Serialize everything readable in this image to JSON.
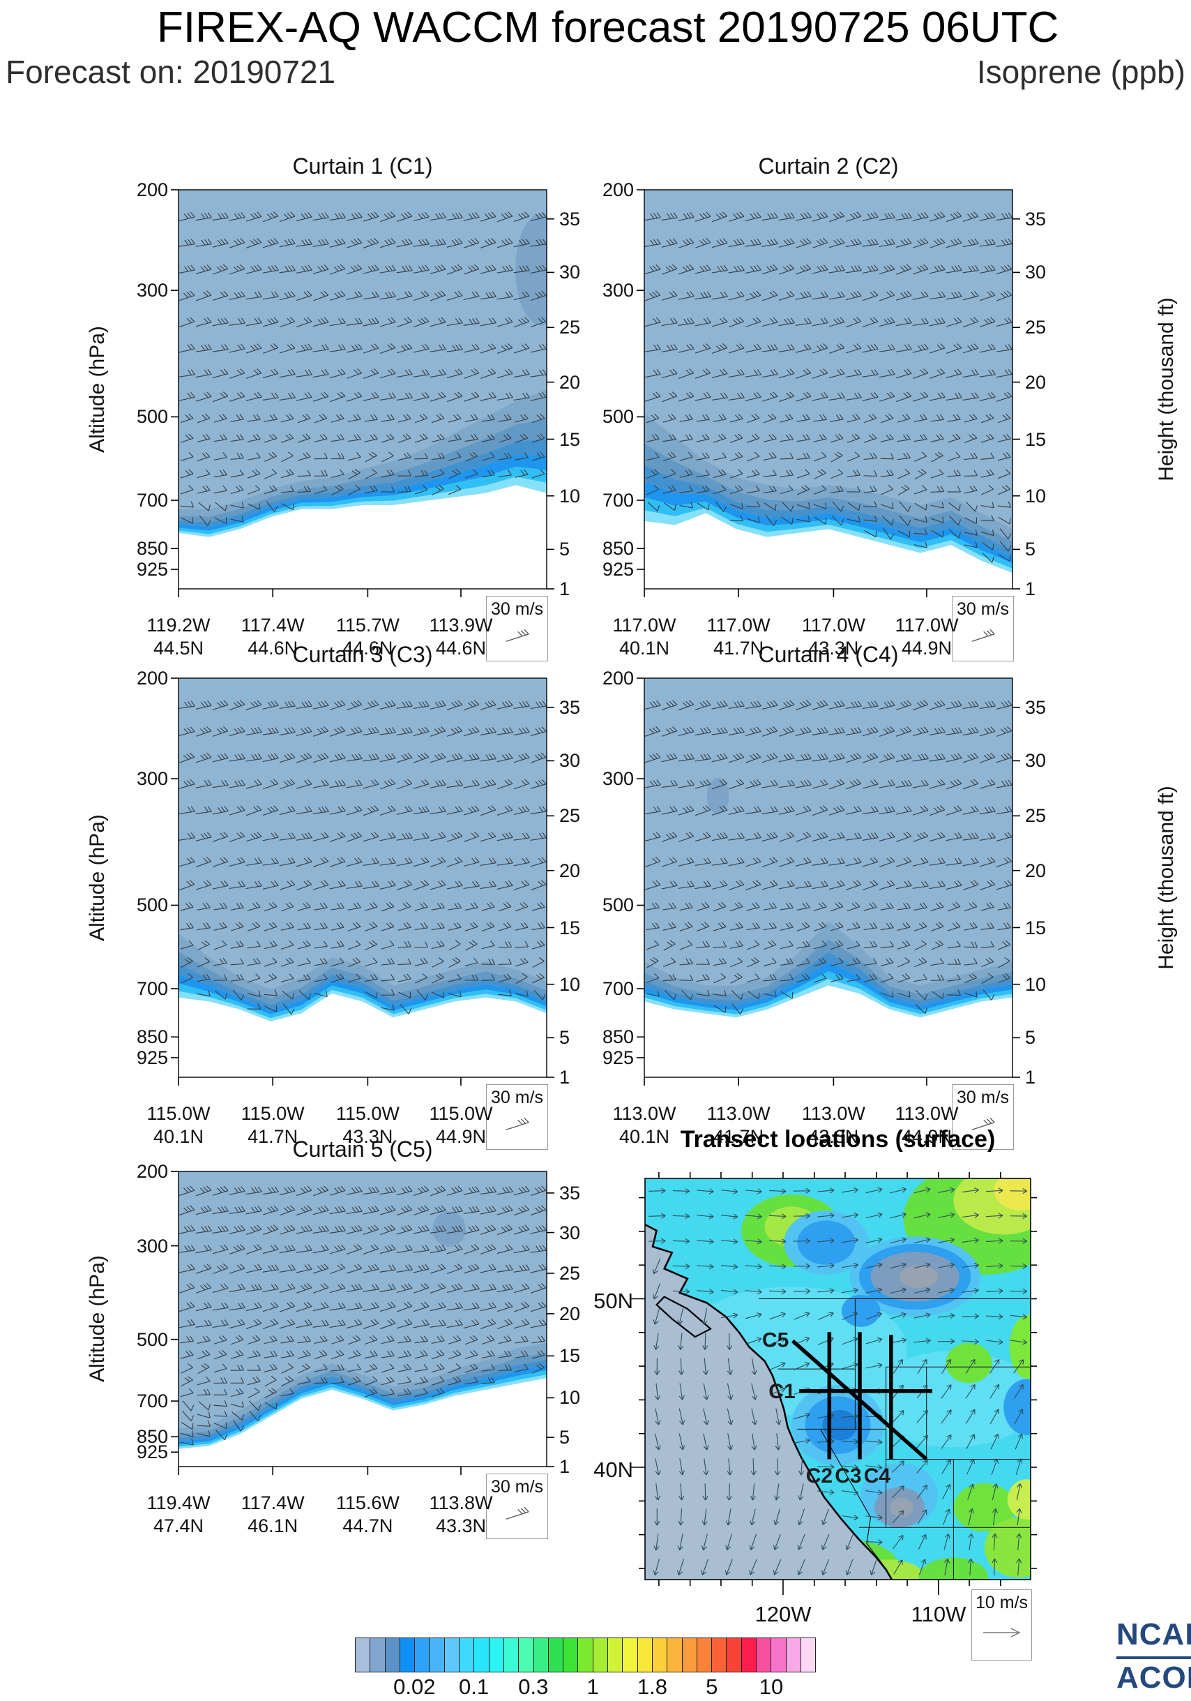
{
  "header": {
    "title": "FIREX-AQ WACCM forecast 20190725 06UTC",
    "forecast_on": "Forecast on: 20190721",
    "species": "Isoprene (ppb)"
  },
  "chart_data": {
    "type": "heatmap",
    "title": "FIREX-AQ WACCM forecast 20190725 06UTC",
    "units": "ppb",
    "species": "Isoprene",
    "axes": {
      "left_label": "Altitude (hPa)",
      "right_label": "Height (thousand ft)",
      "pressure_ticks": [
        "200",
        "300",
        "500",
        "700",
        "850",
        "925"
      ],
      "height_ticks": [
        "35",
        "30",
        "25",
        "20",
        "15",
        "10",
        "5",
        "1"
      ],
      "wind_legend": "30 m/s"
    },
    "panels": [
      {
        "id": "C1",
        "title": "Curtain 1 (C1)",
        "x_ticks": [
          [
            "119.2W",
            "44.5N"
          ],
          [
            "117.4W",
            "44.6N"
          ],
          [
            "115.7W",
            "44.6N"
          ],
          [
            "113.9W",
            "44.6N"
          ]
        ],
        "surf": [
          0.86,
          0.87,
          0.85,
          0.82,
          0.8,
          0.8,
          0.79,
          0.79,
          0.78,
          0.77,
          0.76,
          0.74,
          0.76
        ],
        "base": [
          0.8,
          0.8,
          0.78,
          0.75,
          0.73,
          0.72,
          0.7,
          0.68,
          0.65,
          0.61,
          0.57,
          0.53,
          0.5
        ],
        "blobs": [
          [
            0.985,
            0.2,
            0.07,
            0.14
          ]
        ]
      },
      {
        "id": "C2",
        "title": "Curtain 2 (C2)",
        "x_ticks": [
          [
            "117.0W",
            "40.1N"
          ],
          [
            "117.0W",
            "41.7N"
          ],
          [
            "117.0W",
            "43.3N"
          ],
          [
            "117.0W",
            "44.9N"
          ]
        ],
        "surf": [
          0.83,
          0.84,
          0.81,
          0.85,
          0.87,
          0.86,
          0.85,
          0.87,
          0.89,
          0.91,
          0.89,
          0.93,
          0.96
        ],
        "base": [
          0.56,
          0.62,
          0.68,
          0.72,
          0.74,
          0.75,
          0.74,
          0.75,
          0.77,
          0.79,
          0.77,
          0.81,
          0.85
        ],
        "blobs": []
      },
      {
        "id": "C3",
        "title": "Curtain 3 (C3)",
        "x_ticks": [
          [
            "115.0W",
            "40.1N"
          ],
          [
            "115.0W",
            "41.7N"
          ],
          [
            "115.0W",
            "43.3N"
          ],
          [
            "115.0W",
            "44.9N"
          ]
        ],
        "surf": [
          0.8,
          0.81,
          0.83,
          0.86,
          0.84,
          0.79,
          0.81,
          0.85,
          0.83,
          0.81,
          0.8,
          0.81,
          0.84
        ],
        "base": [
          0.64,
          0.7,
          0.75,
          0.78,
          0.75,
          0.7,
          0.72,
          0.77,
          0.75,
          0.73,
          0.71,
          0.73,
          0.76
        ],
        "blobs": []
      },
      {
        "id": "C4",
        "title": "Curtain 4 (C4)",
        "x_ticks": [
          [
            "113.0W",
            "40.1N"
          ],
          [
            "113.0W",
            "41.7N"
          ],
          [
            "113.0W",
            "43.3N"
          ],
          [
            "113.0W",
            "44.9N"
          ]
        ],
        "surf": [
          0.81,
          0.83,
          0.84,
          0.85,
          0.83,
          0.8,
          0.77,
          0.79,
          0.83,
          0.85,
          0.83,
          0.81,
          0.8
        ],
        "base": [
          0.71,
          0.75,
          0.77,
          0.77,
          0.75,
          0.69,
          0.61,
          0.67,
          0.75,
          0.77,
          0.75,
          0.73,
          0.71
        ],
        "blobs": [
          [
            0.2,
            0.295,
            0.03,
            0.045
          ]
        ]
      },
      {
        "id": "C5",
        "title": "Curtain 5 (C5)",
        "x_ticks": [
          [
            "119.4W",
            "47.4N"
          ],
          [
            "117.4W",
            "46.1N"
          ],
          [
            "115.6W",
            "44.7N"
          ],
          [
            "113.8W",
            "43.3N"
          ]
        ],
        "surf": [
          0.94,
          0.93,
          0.89,
          0.83,
          0.77,
          0.74,
          0.77,
          0.81,
          0.79,
          0.76,
          0.74,
          0.72,
          0.7
        ],
        "base": [
          0.87,
          0.86,
          0.81,
          0.75,
          0.69,
          0.65,
          0.69,
          0.73,
          0.71,
          0.67,
          0.64,
          0.6,
          0.58
        ],
        "blobs": [
          [
            0.735,
            0.195,
            0.045,
            0.06
          ]
        ]
      }
    ],
    "map": {
      "title": "Transect locations (surface)",
      "lat_ticks": [
        "50N",
        "40N"
      ],
      "lon_ticks": [
        "120W",
        "110W"
      ],
      "wind_legend": "10 m/s",
      "transects": [
        {
          "id": "C1",
          "label": "C1",
          "line": [
            [
              0.4,
              0.53
            ],
            [
              0.745,
              0.53
            ]
          ],
          "label_pos": [
            0.39,
            0.548
          ],
          "anchor": "end"
        },
        {
          "id": "C2",
          "label": "C2",
          "line": [
            [
              0.478,
              0.383
            ],
            [
              0.478,
              0.7
            ]
          ],
          "label_pos": [
            0.452,
            0.758
          ],
          "anchor": "middle"
        },
        {
          "id": "C3",
          "label": "C3",
          "line": [
            [
              0.557,
              0.383
            ],
            [
              0.557,
              0.7
            ]
          ],
          "label_pos": [
            0.527,
            0.758
          ],
          "anchor": "middle"
        },
        {
          "id": "C4",
          "label": "C4",
          "line": [
            [
              0.638,
              0.39
            ],
            [
              0.638,
              0.7
            ]
          ],
          "label_pos": [
            0.602,
            0.758
          ],
          "anchor": "middle"
        },
        {
          "id": "C5",
          "label": "C5",
          "line": [
            [
              0.383,
              0.405
            ],
            [
              0.73,
              0.7
            ]
          ],
          "label_pos": [
            0.373,
            0.42
          ],
          "anchor": "end"
        }
      ]
    },
    "colorbar": {
      "labels": [
        "0.02",
        "0.1",
        "0.3",
        "1",
        "1.8",
        "5",
        "10"
      ],
      "label_boundaries": [
        3,
        7,
        11,
        15,
        19,
        23,
        27
      ],
      "colors": [
        "#a7bedc",
        "#7fa6cf",
        "#5b92c7",
        "#0f90f5",
        "#2da2f8",
        "#49b4f9",
        "#5fc8fb",
        "#3fd9fb",
        "#2ae6fc",
        "#2df4f2",
        "#3cfad4",
        "#4bfdb0",
        "#38ef83",
        "#2ee052",
        "#3ce334",
        "#7ce930",
        "#a5ee34",
        "#d2f23a",
        "#f2f43c",
        "#f8e83a",
        "#facf39",
        "#fbb43b",
        "#fb9b3c",
        "#f9823a",
        "#f86238",
        "#f94337",
        "#fb1d4d",
        "#f750a0",
        "#f573c8",
        "#f9a8e8",
        "#fcd9f2"
      ]
    },
    "colors": {
      "curtain_bg": "#8fb5d3",
      "band": [
        "#7ea8c9",
        "#6399c5",
        "#4292d0",
        "#1e95ef",
        "#30bff5",
        "#85e0fa"
      ],
      "blob": "#7ba4c8",
      "map_base": "#45d9f0",
      "ocean_mask": "#a9bdd3",
      "barb": "#3a4046",
      "map_arrow": "#2e4f58"
    }
  },
  "logo": {
    "line1": "NCAR",
    "line2": "ACOM",
    "color": "#25497e"
  }
}
